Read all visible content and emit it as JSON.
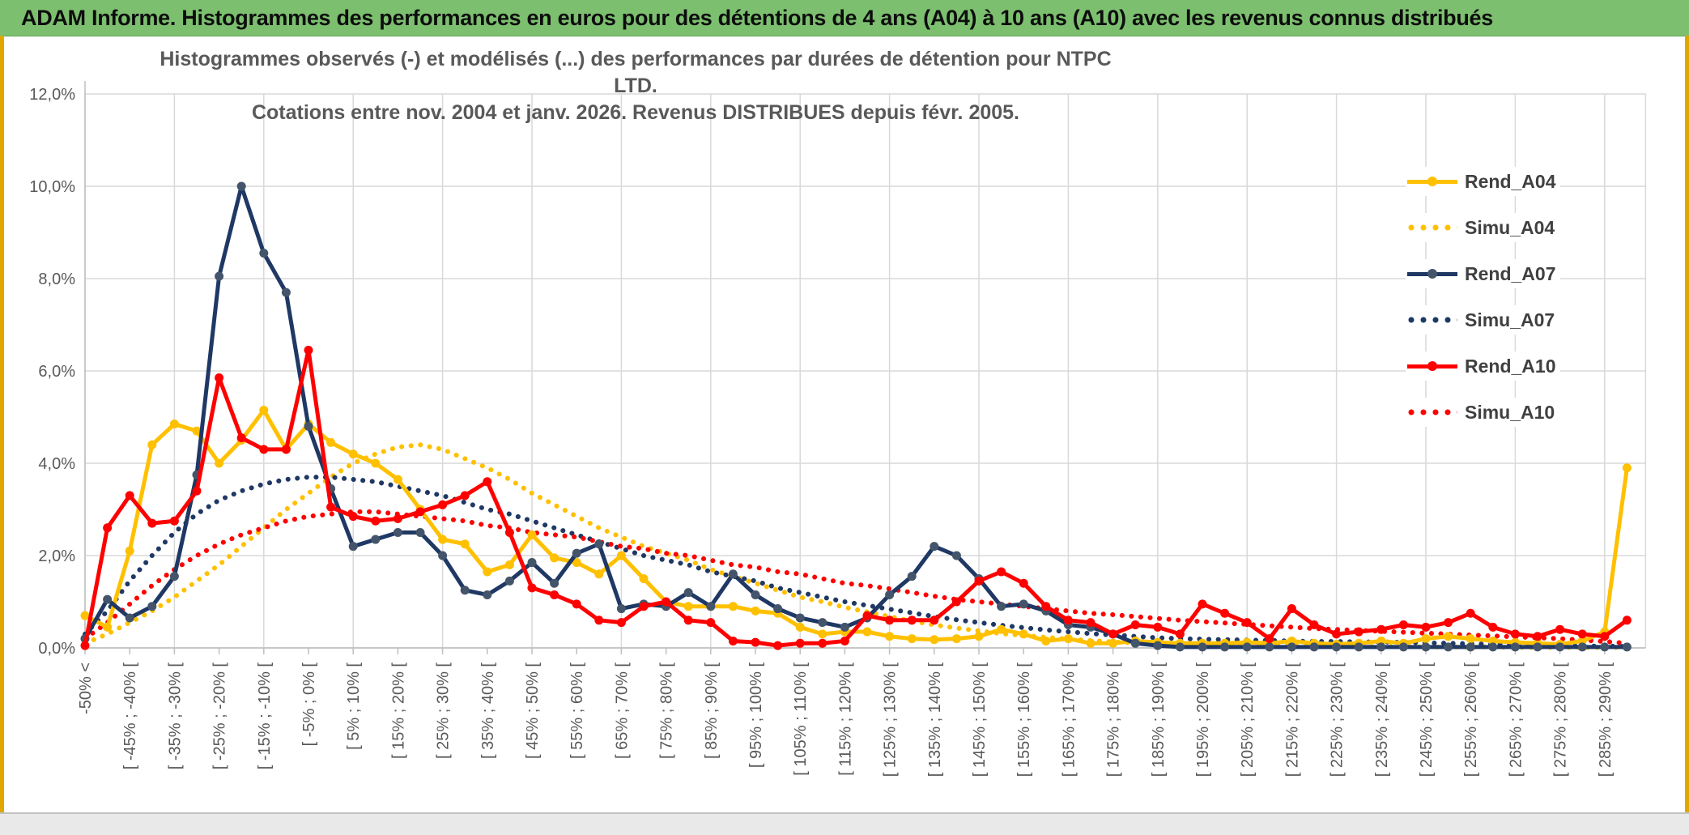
{
  "header": {
    "title": "ADAM Informe. Histogrammes des performances en euros pour des détentions de 4 ans (A04) à 10 ans (A10) avec les revenus connus distribués",
    "bg_color": "#7cc06f"
  },
  "chart_data": {
    "type": "line",
    "title": "Histogrammes observés (-) et modélisés (...) des performances par durées de détention pour NTPC LTD.",
    "subtitle": "Cotations entre nov. 2004 et janv. 2026. Revenus DISTRIBUES depuis févr. 2005.",
    "xlabel": "",
    "ylabel": "",
    "ylim": [
      0,
      12
    ],
    "y_tick_step": 2,
    "y_tick_labels": [
      "0,0%",
      "2,0%",
      "4,0%",
      "6,0%",
      "8,0%",
      "10,0%",
      "12,0%"
    ],
    "grid": true,
    "grid_color": "#d9d9d9",
    "axis_color": "#bfbfbf",
    "axis_text_color": "#595959",
    "legend_position": "right",
    "n_points": 70,
    "x_label_every_n_points": 2,
    "x_tick_labels": [
      "-50% <",
      "[ -45% ; -40% [",
      "[ -35% ; -30% [",
      "[ -25% ; -20% [",
      "[ -15% ; -10% [",
      "[ -5% ; 0% [",
      "[ 5% ; 10% [",
      "[ 15% ; 20% [",
      "[ 25% ; 30% [",
      "[ 35% ; 40% [",
      "[ 45% ; 50% [",
      "[ 55% ; 60% [",
      "[ 65% ; 70% [",
      "[ 75% ; 80% [",
      "[ 85% ; 90% [",
      "[ 95% ; 100% [",
      "[ 105% ; 110% [",
      "[ 115% ; 120% [",
      "[ 125% ; 130% [",
      "[ 135% ; 140% [",
      "[ 145% ; 150% [",
      "[ 155% ; 160% [",
      "[ 165% ; 170% [",
      "[ 175% ; 180% [",
      "[ 185% ; 190% [",
      "[ 195% ; 200% [",
      "[ 205% ; 210% [",
      "[ 215% ; 220% [",
      "[ 225% ; 230% [",
      "[ 235% ; 240% [",
      "[ 245% ; 250% [",
      "[ 255% ; 260% [",
      "[ 265% ; 270% [",
      "[ 275% ; 280% [",
      "[ 285% ; 290% ["
    ],
    "series": [
      {
        "name": "Rend_A04",
        "style": "solid",
        "color": "#ffc000",
        "marker_color": "#ffc000",
        "values": [
          0.7,
          0.45,
          2.1,
          4.4,
          4.85,
          4.7,
          4.0,
          4.5,
          5.15,
          4.3,
          4.85,
          4.45,
          4.2,
          4.0,
          3.65,
          3.0,
          2.35,
          2.25,
          1.65,
          1.8,
          2.45,
          1.95,
          1.85,
          1.6,
          2.0,
          1.5,
          1.0,
          0.9,
          0.9,
          0.9,
          0.8,
          0.75,
          0.45,
          0.3,
          0.35,
          0.35,
          0.25,
          0.2,
          0.18,
          0.2,
          0.25,
          0.4,
          0.3,
          0.15,
          0.2,
          0.1,
          0.1,
          0.15,
          0.12,
          0.1,
          0.1,
          0.1,
          0.12,
          0.1,
          0.15,
          0.1,
          0.08,
          0.1,
          0.15,
          0.1,
          0.2,
          0.25,
          0.2,
          0.15,
          0.12,
          0.1,
          0.08,
          0.15,
          0.35,
          3.9
        ]
      },
      {
        "name": "Simu_A04",
        "style": "dotted",
        "color": "#ffc000",
        "marker_color": "#ffc000",
        "values": [
          0.1,
          0.3,
          0.55,
          0.8,
          1.1,
          1.45,
          1.8,
          2.2,
          2.6,
          3.0,
          3.35,
          3.7,
          4.0,
          4.2,
          4.35,
          4.4,
          4.3,
          4.1,
          3.9,
          3.65,
          3.35,
          3.1,
          2.85,
          2.6,
          2.4,
          2.2,
          2.05,
          1.9,
          1.7,
          1.55,
          1.4,
          1.25,
          1.1,
          1.0,
          0.88,
          0.78,
          0.68,
          0.58,
          0.5,
          0.43,
          0.37,
          0.31,
          0.27,
          0.23,
          0.19,
          0.16,
          0.13,
          0.11,
          0.1,
          0.09,
          0.08,
          0.07,
          0.06,
          0.05,
          0.05,
          0.04,
          0.04,
          0.03,
          0.03,
          0.03,
          0.02,
          0.02,
          0.02,
          0.02,
          0.01,
          0.01,
          0.01,
          0.01,
          0.01,
          0.01
        ]
      },
      {
        "name": "Rend_A07",
        "style": "solid",
        "color": "#1f3864",
        "marker_color": "#44546a",
        "values": [
          0.2,
          1.05,
          0.65,
          0.9,
          1.55,
          3.75,
          8.05,
          10.0,
          8.55,
          7.7,
          4.8,
          3.45,
          2.2,
          2.35,
          2.5,
          2.5,
          2.0,
          1.25,
          1.15,
          1.45,
          1.85,
          1.4,
          2.05,
          2.25,
          0.85,
          0.95,
          0.9,
          1.2,
          0.9,
          1.6,
          1.15,
          0.85,
          0.65,
          0.55,
          0.45,
          0.65,
          1.15,
          1.55,
          2.2,
          2.0,
          1.5,
          0.9,
          0.95,
          0.8,
          0.5,
          0.45,
          0.3,
          0.1,
          0.05,
          0.02,
          0.02,
          0.02,
          0.02,
          0.02,
          0.02,
          0.02,
          0.02,
          0.02,
          0.02,
          0.02,
          0.02,
          0.02,
          0.02,
          0.02,
          0.02,
          0.02,
          0.02,
          0.02,
          0.02,
          0.02
        ]
      },
      {
        "name": "Simu_A07",
        "style": "dotted",
        "color": "#1f3864",
        "marker_color": "#1f3864",
        "values": [
          0.3,
          0.8,
          1.45,
          2.0,
          2.5,
          2.9,
          3.2,
          3.4,
          3.55,
          3.65,
          3.7,
          3.7,
          3.65,
          3.6,
          3.5,
          3.4,
          3.3,
          3.15,
          3.0,
          2.9,
          2.75,
          2.6,
          2.45,
          2.3,
          2.15,
          2.0,
          1.9,
          1.8,
          1.65,
          1.55,
          1.45,
          1.3,
          1.2,
          1.1,
          1.0,
          0.92,
          0.84,
          0.76,
          0.68,
          0.61,
          0.55,
          0.49,
          0.44,
          0.39,
          0.35,
          0.31,
          0.28,
          0.25,
          0.22,
          0.2,
          0.19,
          0.18,
          0.17,
          0.16,
          0.15,
          0.14,
          0.14,
          0.13,
          0.13,
          0.12,
          0.11,
          0.1,
          0.09,
          0.08,
          0.07,
          0.06,
          0.05,
          0.04,
          0.04,
          0.03
        ]
      },
      {
        "name": "Rend_A10",
        "style": "solid",
        "color": "#ff0000",
        "marker_color": "#ff0000",
        "values": [
          0.05,
          2.6,
          3.3,
          2.7,
          2.75,
          3.4,
          5.85,
          4.55,
          4.3,
          4.3,
          6.45,
          3.05,
          2.85,
          2.75,
          2.8,
          2.95,
          3.1,
          3.3,
          3.6,
          2.5,
          1.3,
          1.15,
          0.95,
          0.6,
          0.55,
          0.9,
          1.0,
          0.6,
          0.55,
          0.15,
          0.12,
          0.05,
          0.1,
          0.1,
          0.15,
          0.7,
          0.6,
          0.6,
          0.6,
          1.0,
          1.45,
          1.65,
          1.4,
          0.9,
          0.6,
          0.55,
          0.3,
          0.5,
          0.45,
          0.3,
          0.95,
          0.75,
          0.55,
          0.2,
          0.85,
          0.5,
          0.3,
          0.35,
          0.4,
          0.5,
          0.45,
          0.55,
          0.75,
          0.45,
          0.3,
          0.25,
          0.4,
          0.3,
          0.25,
          0.6
        ]
      },
      {
        "name": "Simu_A10",
        "style": "dotted",
        "color": "#ff0000",
        "marker_color": "#ff0000",
        "values": [
          0.2,
          0.55,
          0.95,
          1.35,
          1.7,
          2.0,
          2.25,
          2.45,
          2.6,
          2.75,
          2.85,
          2.9,
          2.95,
          2.95,
          2.9,
          2.85,
          2.8,
          2.75,
          2.65,
          2.6,
          2.5,
          2.45,
          2.4,
          2.3,
          2.2,
          2.15,
          2.05,
          2.0,
          1.9,
          1.8,
          1.75,
          1.65,
          1.6,
          1.5,
          1.4,
          1.35,
          1.28,
          1.2,
          1.12,
          1.05,
          1.0,
          0.95,
          0.9,
          0.85,
          0.8,
          0.75,
          0.72,
          0.68,
          0.64,
          0.6,
          0.57,
          0.54,
          0.51,
          0.48,
          0.45,
          0.42,
          0.4,
          0.38,
          0.36,
          0.34,
          0.32,
          0.3,
          0.28,
          0.26,
          0.24,
          0.22,
          0.2,
          0.17,
          0.14,
          0.1
        ]
      }
    ]
  },
  "legend": {
    "items": [
      {
        "label": "Rend_A04"
      },
      {
        "label": "Simu_A04"
      },
      {
        "label": "Rend_A07"
      },
      {
        "label": "Simu_A07"
      },
      {
        "label": "Rend_A10"
      },
      {
        "label": "Simu_A10"
      }
    ]
  }
}
